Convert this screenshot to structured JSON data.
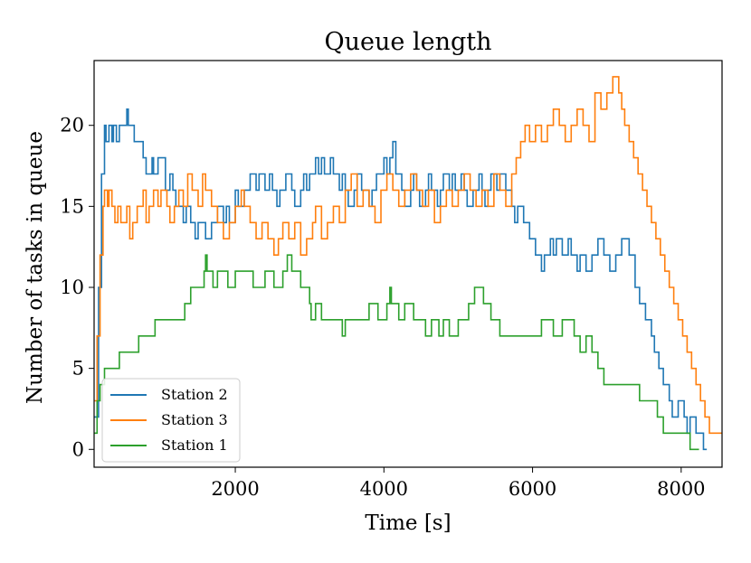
{
  "chart_data": {
    "type": "line",
    "step": true,
    "title": "Queue length",
    "xlabel": "Time [s]",
    "ylabel": "Number of tasks in queue",
    "xlim": [
      100,
      8550
    ],
    "ylim": [
      -1.1,
      24
    ],
    "xticks": [
      2000,
      4000,
      6000,
      8000
    ],
    "xtick_labels": [
      "2000",
      "4000",
      "6000",
      "8000"
    ],
    "yticks": [
      0,
      5,
      10,
      15,
      20
    ],
    "ytick_labels": [
      "0",
      "5",
      "10",
      "15",
      "20"
    ],
    "grid": false,
    "legend_position": "lower-left",
    "series": [
      {
        "name": "Station 2",
        "color": "#1f77b4",
        "x": [
          100,
          160,
          200,
          240,
          260,
          300,
          340,
          360,
          400,
          440,
          460,
          520,
          540,
          560,
          640,
          760,
          800,
          880,
          900,
          960,
          1060,
          1120,
          1160,
          1200,
          1300,
          1340,
          1400,
          1460,
          1500,
          1600,
          1680,
          1760,
          1840,
          1880,
          1920,
          2000,
          2040,
          2120,
          2200,
          2280,
          2320,
          2400,
          2460,
          2500,
          2560,
          2600,
          2680,
          2760,
          2800,
          2880,
          2920,
          2960,
          3000,
          3080,
          3120,
          3160,
          3200,
          3280,
          3320,
          3400,
          3440,
          3480,
          3520,
          3600,
          3640,
          3700,
          3800,
          3840,
          3900,
          4000,
          4040,
          4080,
          4120,
          4160,
          4240,
          4280,
          4360,
          4400,
          4440,
          4480,
          4560,
          4600,
          4640,
          4720,
          4760,
          4800,
          4880,
          4920,
          4960,
          5040,
          5080,
          5120,
          5200,
          5280,
          5320,
          5360,
          5400,
          5440,
          5520,
          5560,
          5640,
          5720,
          5760,
          5800,
          5880,
          5960,
          6040,
          6120,
          6160,
          6240,
          6280,
          6320,
          6400,
          6480,
          6520,
          6600,
          6640,
          6720,
          6800,
          6880,
          6960,
          7040,
          7120,
          7200,
          7300,
          7380,
          7440,
          7520,
          7600,
          7640,
          7700,
          7760,
          7840,
          7880,
          7960,
          8040,
          8080,
          8120,
          8200,
          8260,
          8300,
          8340
        ],
        "y": [
          2,
          10,
          17,
          20,
          19,
          20,
          19,
          20,
          19,
          20,
          20,
          20,
          21,
          20,
          19,
          18,
          17,
          18,
          17,
          18,
          16,
          17,
          16,
          15,
          14,
          15,
          14,
          13,
          14,
          13,
          14,
          15,
          14,
          15,
          14,
          16,
          15,
          16,
          17,
          16,
          17,
          16,
          17,
          16,
          15,
          16,
          17,
          16,
          15,
          16,
          17,
          16,
          17,
          18,
          17,
          18,
          17,
          18,
          17,
          16,
          17,
          16,
          15,
          16,
          17,
          16,
          15,
          16,
          17,
          18,
          17,
          18,
          19,
          17,
          16,
          15,
          16,
          17,
          16,
          15,
          16,
          17,
          16,
          15,
          16,
          17,
          16,
          17,
          16,
          17,
          16,
          15,
          16,
          17,
          16,
          15,
          16,
          17,
          16,
          17,
          16,
          15,
          14,
          15,
          14,
          13,
          12,
          11,
          12,
          13,
          12,
          13,
          12,
          13,
          12,
          11,
          12,
          11,
          12,
          13,
          12,
          11,
          12,
          13,
          12,
          10,
          9,
          8,
          7,
          6,
          5,
          4,
          3,
          2,
          3,
          2,
          1,
          2,
          1,
          1,
          0,
          0
        ],
        "end_x": 8345
      },
      {
        "name": "Station 3",
        "color": "#ff7f0e",
        "x": [
          100,
          140,
          180,
          220,
          240,
          280,
          300,
          340,
          380,
          420,
          460,
          540,
          580,
          620,
          680,
          760,
          800,
          840,
          900,
          960,
          1000,
          1080,
          1120,
          1180,
          1240,
          1300,
          1360,
          1420,
          1500,
          1560,
          1600,
          1680,
          1760,
          1840,
          1920,
          2000,
          2080,
          2120,
          2200,
          2280,
          2360,
          2440,
          2520,
          2580,
          2640,
          2720,
          2800,
          2880,
          2960,
          3040,
          3080,
          3160,
          3240,
          3320,
          3400,
          3480,
          3560,
          3640,
          3720,
          3800,
          3880,
          3960,
          4040,
          4120,
          4200,
          4280,
          4360,
          4440,
          4520,
          4600,
          4680,
          4760,
          4840,
          4920,
          5000,
          5080,
          5160,
          5240,
          5320,
          5400,
          5480,
          5560,
          5640,
          5720,
          5780,
          5840,
          5900,
          5960,
          6040,
          6120,
          6200,
          6280,
          6360,
          6440,
          6520,
          6600,
          6680,
          6760,
          6840,
          6920,
          7000,
          7080,
          7160,
          7200,
          7240,
          7300,
          7360,
          7420,
          7480,
          7540,
          7600,
          7660,
          7720,
          7780,
          7840,
          7900,
          7960,
          8020,
          8080,
          8140,
          8200,
          8260,
          8320,
          8380,
          8420,
          8460,
          8500,
          8520
        ],
        "y": [
          3,
          7,
          12,
          15,
          16,
          15,
          16,
          15,
          14,
          15,
          14,
          15,
          13,
          14,
          15,
          16,
          14,
          15,
          16,
          15,
          16,
          15,
          14,
          15,
          16,
          15,
          17,
          16,
          15,
          17,
          16,
          15,
          14,
          13,
          14,
          15,
          16,
          15,
          14,
          13,
          14,
          13,
          12,
          13,
          14,
          13,
          14,
          12,
          13,
          14,
          15,
          13,
          14,
          15,
          14,
          16,
          17,
          15,
          16,
          15,
          14,
          16,
          17,
          16,
          15,
          16,
          17,
          16,
          15,
          16,
          14,
          15,
          16,
          15,
          16,
          17,
          16,
          15,
          16,
          15,
          17,
          16,
          15,
          17,
          18,
          19,
          20,
          19,
          20,
          19,
          20,
          21,
          20,
          19,
          20,
          21,
          20,
          19,
          22,
          21,
          22,
          23,
          22,
          21,
          20,
          19,
          18,
          17,
          16,
          15,
          14,
          13,
          12,
          11,
          10,
          9,
          8,
          7,
          6,
          5,
          4,
          3,
          2,
          1,
          1,
          1,
          1,
          1
        ],
        "end_x": 8550
      },
      {
        "name": "Station 1",
        "color": "#2ca02c",
        "x": [
          100,
          140,
          180,
          240,
          300,
          440,
          520,
          700,
          780,
          920,
          1120,
          1320,
          1400,
          1500,
          1580,
          1600,
          1620,
          1700,
          1760,
          1900,
          2000,
          2120,
          2240,
          2400,
          2520,
          2640,
          2700,
          2760,
          2880,
          3000,
          3020,
          3080,
          3160,
          3280,
          3360,
          3440,
          3480,
          3500,
          3640,
          3720,
          3800,
          3920,
          4040,
          4080,
          4100,
          4200,
          4280,
          4400,
          4560,
          4640,
          4740,
          4800,
          4880,
          5000,
          5140,
          5220,
          5300,
          5340,
          5440,
          5560,
          5580,
          5660,
          5760,
          5880,
          6000,
          6120,
          6280,
          6400,
          6560,
          6640,
          6720,
          6800,
          6880,
          6960,
          7040,
          7120,
          7200,
          7280,
          7440,
          7560,
          7680,
          7760,
          7840,
          7960,
          8060,
          8120,
          8200,
          8220
        ],
        "y": [
          1,
          3,
          4,
          5,
          5,
          6,
          6,
          7,
          7,
          8,
          8,
          9,
          10,
          10,
          11,
          12,
          11,
          10,
          11,
          10,
          11,
          11,
          10,
          11,
          10,
          11,
          12,
          11,
          10,
          9,
          8,
          9,
          8,
          8,
          8,
          7,
          8,
          8,
          8,
          8,
          9,
          8,
          9,
          10,
          9,
          8,
          9,
          8,
          7,
          8,
          7,
          8,
          7,
          8,
          9,
          10,
          10,
          9,
          8,
          7,
          7,
          7,
          7,
          7,
          7,
          8,
          7,
          8,
          7,
          6,
          7,
          6,
          5,
          4,
          4,
          4,
          4,
          4,
          3,
          3,
          2,
          1,
          1,
          1,
          1,
          0,
          0,
          0
        ],
        "end_x": 8240
      }
    ]
  }
}
